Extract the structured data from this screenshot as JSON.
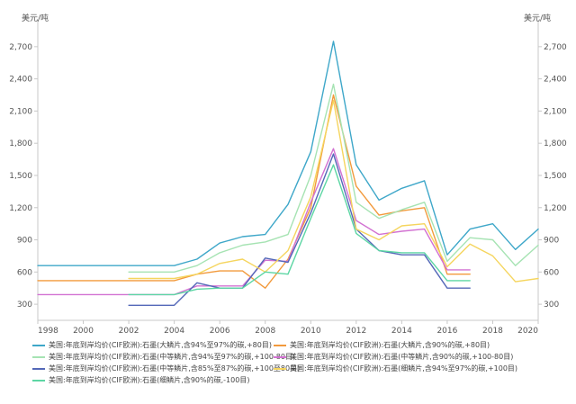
{
  "chart_data": {
    "type": "line",
    "unit_left": "美元/吨",
    "unit_right": "美元/吨",
    "xlim": [
      1998,
      2020
    ],
    "ylim": [
      150,
      2900
    ],
    "x_ticks": [
      1998,
      2000,
      2002,
      2004,
      2006,
      2008,
      2010,
      2012,
      2014,
      2016,
      2018,
      2020
    ],
    "y_ticks": [
      {
        "value": 300,
        "label": "300"
      },
      {
        "value": 600,
        "label": "600"
      },
      {
        "value": 900,
        "label": "900"
      },
      {
        "value": 1200,
        "label": "1,200"
      },
      {
        "value": 1500,
        "label": "1,500"
      },
      {
        "value": 1800,
        "label": "1,800"
      },
      {
        "value": 2100,
        "label": "2,100"
      },
      {
        "value": 2400,
        "label": "2,400"
      },
      {
        "value": 2700,
        "label": "2,700"
      }
    ],
    "grid": false,
    "legend_position": "bottom",
    "series": [
      {
        "name": "美国:年底到岸均价(CIF欧洲):石墨(大鳞片,含94%至97%的碳,+80目)",
        "color": "#3ea7c9",
        "x": [
          1998,
          1999,
          2000,
          2001,
          2002,
          2003,
          2004,
          2005,
          2006,
          2007,
          2008,
          2009,
          2010,
          2011,
          2012,
          2013,
          2014,
          2015,
          2016,
          2017,
          2018,
          2019,
          2020
        ],
        "y": [
          660,
          660,
          660,
          660,
          660,
          660,
          660,
          720,
          870,
          930,
          950,
          1230,
          1720,
          2750,
          1600,
          1270,
          1380,
          1450,
          760,
          1000,
          1050,
          810,
          1000
        ]
      },
      {
        "name": "美国:年底到岸均价(CIF欧洲):石墨(大鳞片,含90%的碳,+80目)",
        "color": "#f29a3c",
        "x": [
          1998,
          1999,
          2000,
          2001,
          2002,
          2003,
          2004,
          2005,
          2006,
          2007,
          2008,
          2009,
          2010,
          2011,
          2012,
          2013,
          2014,
          2015,
          2016,
          2017
        ],
        "y": [
          520,
          520,
          520,
          520,
          520,
          520,
          520,
          580,
          610,
          610,
          450,
          720,
          1200,
          2250,
          1400,
          1130,
          1170,
          1200,
          580,
          580
        ]
      },
      {
        "name": "美国:年底到岸均价(CIF欧洲):石墨(中等鳞片,含94%至97%的碳,+100-80目)",
        "color": "#a6e3b3",
        "x": [
          2002,
          2003,
          2004,
          2005,
          2006,
          2007,
          2008,
          2009,
          2010,
          2011,
          2012,
          2013,
          2014,
          2015,
          2016,
          2017,
          2018,
          2019,
          2020
        ],
        "y": [
          600,
          600,
          600,
          660,
          780,
          850,
          880,
          950,
          1500,
          2350,
          1250,
          1100,
          1180,
          1250,
          700,
          920,
          900,
          660,
          850
        ]
      },
      {
        "name": "美国:年底到岸均价(CIF欧洲):石墨(中等鳞片,含90%的碳,+100-80目)",
        "color": "#d272d2",
        "x": [
          1998,
          1999,
          2000,
          2001,
          2002,
          2003,
          2004,
          2005,
          2006,
          2007,
          2008,
          2009,
          2010,
          2011,
          2012,
          2013,
          2014,
          2015,
          2016,
          2017
        ],
        "y": [
          390,
          390,
          390,
          390,
          390,
          390,
          390,
          470,
          470,
          470,
          710,
          700,
          1250,
          1750,
          1080,
          950,
          980,
          1000,
          620,
          620
        ]
      },
      {
        "name": "美国:年底到岸均价(CIF欧洲):石墨(中等鳞片,含85%至87%的碳,+100至80目)",
        "color": "#5468b8",
        "x": [
          2002,
          2003,
          2004,
          2005,
          2006,
          2007,
          2008,
          2009,
          2010,
          2011,
          2012,
          2013,
          2014,
          2015,
          2016,
          2017
        ],
        "y": [
          290,
          290,
          290,
          500,
          450,
          450,
          730,
          690,
          1150,
          1700,
          1000,
          800,
          760,
          760,
          450,
          450
        ]
      },
      {
        "name": "美国:年底到岸均价(CIF欧洲):石墨(细鳞片,含94%至97%的碳,+100目)",
        "color": "#f5d55e",
        "x": [
          2002,
          2003,
          2004,
          2005,
          2006,
          2007,
          2008,
          2009,
          2010,
          2011,
          2012,
          2013,
          2014,
          2015,
          2016,
          2017,
          2018,
          2019,
          2020
        ],
        "y": [
          540,
          540,
          540,
          580,
          680,
          720,
          600,
          800,
          1300,
          2200,
          1000,
          900,
          1030,
          1050,
          650,
          860,
          750,
          510,
          540
        ]
      },
      {
        "name": "美国:年底到岸均价(CIF欧洲):石墨(细鳞片,含90%的碳,-100目)",
        "color": "#5dd6a4",
        "x": [
          2002,
          2003,
          2004,
          2005,
          2006,
          2007,
          2008,
          2009,
          2010,
          2011,
          2012,
          2013,
          2014,
          2015,
          2016,
          2017
        ],
        "y": [
          390,
          390,
          390,
          440,
          450,
          450,
          600,
          580,
          1100,
          1600,
          960,
          800,
          780,
          780,
          520,
          520
        ]
      }
    ]
  }
}
